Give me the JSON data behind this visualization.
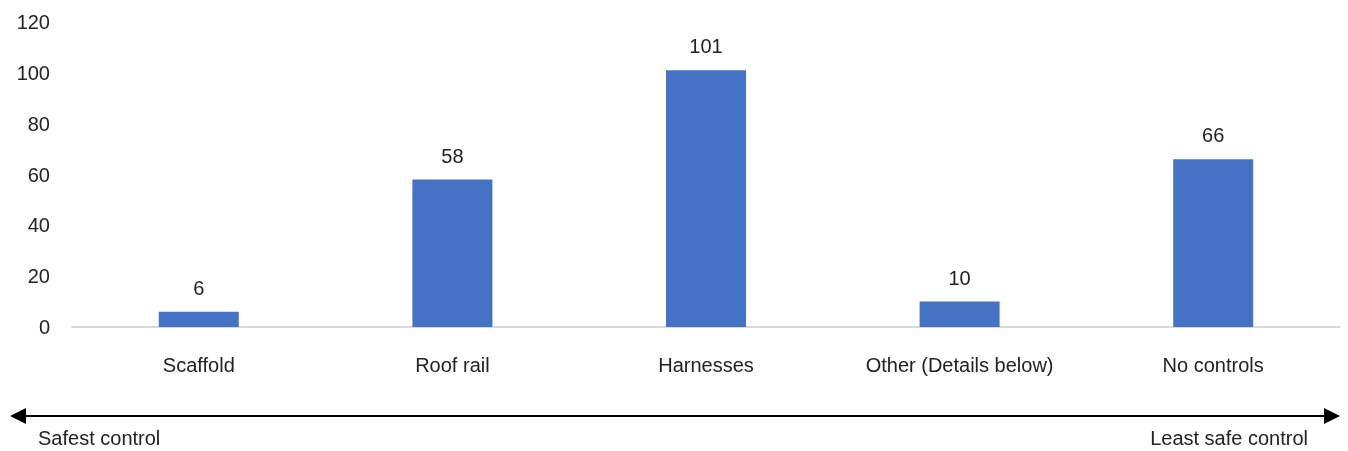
{
  "chart_data": {
    "type": "bar",
    "categories": [
      "Scaffold",
      "Roof rail",
      "Harnesses",
      "Other (Details below)",
      "No controls"
    ],
    "values": [
      6,
      58,
      101,
      10,
      66
    ],
    "color": "#4472c4",
    "ylim": [
      0,
      120
    ],
    "yticks": [
      0,
      20,
      40,
      60,
      80,
      100,
      120
    ],
    "grid": false,
    "data_labels": true,
    "annotations": [
      "Safest control",
      "Least safe control"
    ]
  }
}
